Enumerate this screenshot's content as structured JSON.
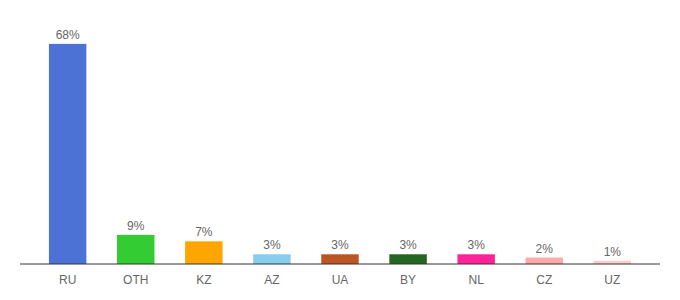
{
  "chart_data": {
    "type": "bar",
    "categories": [
      "RU",
      "OTH",
      "KZ",
      "AZ",
      "UA",
      "BY",
      "NL",
      "CZ",
      "UZ"
    ],
    "values": [
      68,
      9,
      7,
      3,
      3,
      3,
      3,
      2,
      1
    ],
    "value_labels": [
      "68%",
      "9%",
      "7%",
      "3%",
      "3%",
      "3%",
      "3%",
      "2%",
      "1%"
    ],
    "colors": [
      "#4D72D6",
      "#33CC33",
      "#FFA500",
      "#88CCEE",
      "#BB5522",
      "#226622",
      "#FF2299",
      "#FFAAAA",
      "#FFCCCC"
    ],
    "ylim": [
      0,
      76
    ],
    "data_labels": true,
    "tick_labels": "x",
    "grid": false
  }
}
